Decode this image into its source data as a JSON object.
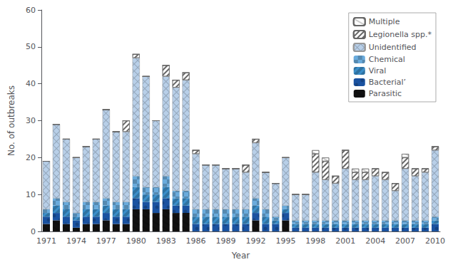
{
  "chart_data": {
    "type": "bar",
    "stacked": true,
    "xlabel": "Year",
    "ylabel": "No. of outbreaks",
    "categories": [
      1971,
      null,
      null,
      1974,
      null,
      null,
      1977,
      null,
      null,
      1980,
      null,
      null,
      1983,
      null,
      null,
      1986,
      null,
      null,
      1989,
      null,
      null,
      1992,
      null,
      null,
      1995,
      null,
      null,
      1998,
      null,
      null,
      2001,
      null,
      null,
      2004,
      null,
      null,
      2007,
      null,
      null,
      2010
    ],
    "series": [
      {
        "name": "Parasitic",
        "color": "#111111",
        "values": [
          2,
          3,
          2,
          1,
          2,
          2,
          3,
          2,
          2,
          6,
          6,
          5,
          6,
          5,
          5,
          0,
          0,
          0,
          0,
          0,
          0,
          3,
          0,
          0,
          3,
          0,
          0,
          0,
          0,
          0,
          0,
          0,
          0,
          0,
          0,
          0,
          0,
          0,
          0,
          0
        ]
      },
      {
        "name": "Bacterial’",
        "color": "#1a52a0",
        "values": [
          2,
          2,
          2,
          2,
          2,
          2,
          2,
          2,
          2,
          3,
          2,
          3,
          3,
          2,
          2,
          2,
          2,
          2,
          2,
          2,
          2,
          2,
          2,
          2,
          2,
          1,
          1,
          1,
          1,
          1,
          1,
          1,
          1,
          1,
          1,
          1,
          1,
          1,
          1,
          2
        ]
      },
      {
        "name": "Viral",
        "color": "#3b8ec9",
        "values": [
          1,
          2,
          2,
          1,
          2,
          2,
          2,
          2,
          2,
          3,
          2,
          2,
          3,
          2,
          2,
          2,
          2,
          2,
          2,
          2,
          2,
          2,
          2,
          1,
          1,
          1,
          1,
          1,
          1,
          1,
          1,
          1,
          1,
          1,
          1,
          1,
          1,
          1,
          1,
          1
        ]
      },
      {
        "name": "Chemical",
        "color": "#6aabdc",
        "values": [
          1,
          2,
          2,
          1,
          2,
          2,
          2,
          2,
          2,
          3,
          2,
          2,
          3,
          2,
          2,
          2,
          2,
          2,
          2,
          2,
          2,
          2,
          2,
          1,
          1,
          1,
          1,
          1,
          1,
          1,
          1,
          1,
          1,
          1,
          1,
          1,
          1,
          1,
          1,
          1
        ]
      },
      {
        "name": "Unidentified",
        "color": "#b8cfe8",
        "values": [
          13,
          20,
          17,
          15,
          15,
          17,
          24,
          19,
          19,
          32,
          30,
          18,
          27,
          28,
          30,
          15,
          12,
          12,
          11,
          11,
          10,
          15,
          10,
          9,
          13,
          7,
          7,
          13,
          11,
          10,
          14,
          11,
          11,
          12,
          11,
          8,
          14,
          12,
          13,
          18
        ]
      },
      {
        "name": "Legionella spp.*",
        "color": "#ffffff",
        "values": [
          0,
          0,
          0,
          0,
          0,
          0,
          0,
          0,
          3,
          1,
          0,
          0,
          3,
          2,
          2,
          1,
          0,
          0,
          0,
          0,
          2,
          1,
          0,
          0,
          0,
          0,
          0,
          5,
          5,
          2,
          5,
          2,
          2,
          2,
          2,
          2,
          3,
          2,
          1,
          1
        ]
      },
      {
        "name": "Multiple",
        "color": "#ffffff",
        "values": [
          0,
          0,
          0,
          0,
          0,
          0,
          0,
          0,
          0,
          0,
          0,
          0,
          0,
          0,
          0,
          0,
          0,
          0,
          0,
          0,
          0,
          0,
          0,
          0,
          0,
          0,
          0,
          1,
          1,
          0,
          0,
          1,
          1,
          0,
          0,
          0,
          1,
          0,
          0,
          0
        ]
      }
    ],
    "ylim": [
      0,
      60
    ],
    "yticks": [
      0,
      10,
      20,
      30,
      40,
      50,
      60
    ],
    "grid": false,
    "legend": "upper right"
  }
}
